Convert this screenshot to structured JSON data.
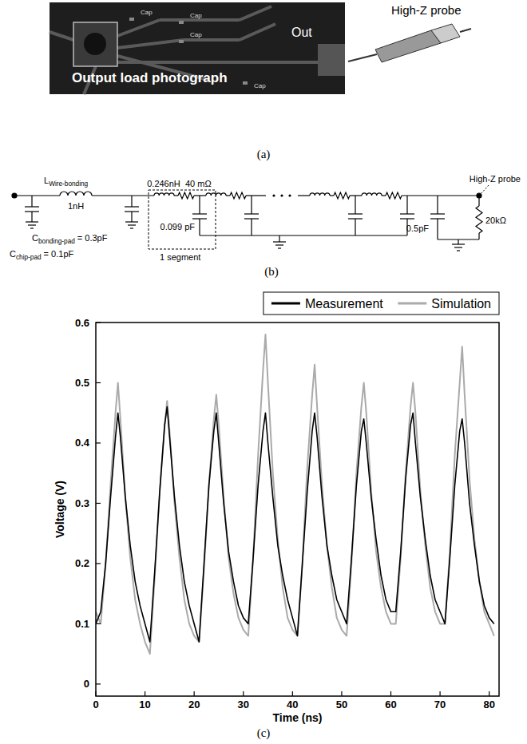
{
  "photo": {
    "caption": "(a)",
    "title": "Output load photograph",
    "out_label": "Out",
    "cap_labels": [
      "Cap",
      "Cap",
      "Cap",
      "Cap"
    ],
    "probe_label": "High-Z probe"
  },
  "circuit": {
    "caption": "(b)",
    "l_wire": {
      "symbol": "L",
      "subscript": "Wire-bonding",
      "value": "1nH"
    },
    "c_bonding": {
      "symbol": "C",
      "subscript": "bonding-pad",
      "value": "= 0.3pF"
    },
    "c_chip": {
      "symbol": "C",
      "subscript": "chip-pad",
      "value": "= 0.1pF"
    },
    "segment": {
      "inductance": "0.246nH",
      "resistance": "40 mΩ",
      "capacitance": "0.099 pF",
      "label": "1 segment"
    },
    "load": {
      "capacitance": "0.5pF",
      "resistance": "20kΩ"
    },
    "probe_label": "High-Z probe"
  },
  "chart_data": {
    "type": "line",
    "caption": "(c)",
    "x_label": "Time (ns)",
    "y_label": "Voltage (V)",
    "x": [
      0,
      1,
      2,
      3,
      4,
      4.5,
      5,
      6,
      7,
      8,
      9,
      10,
      11,
      12,
      13,
      14,
      14.5,
      15,
      16,
      17,
      18,
      19,
      20,
      21,
      22,
      23,
      24,
      24.5,
      25,
      26,
      27,
      28,
      29,
      30,
      31,
      32,
      33,
      34,
      34.5,
      35,
      36,
      37,
      38,
      39,
      40,
      41,
      42,
      43,
      44,
      44.5,
      45,
      46,
      47,
      48,
      49,
      50,
      51,
      52,
      53,
      54,
      54.5,
      55,
      56,
      57,
      58,
      59,
      60,
      61,
      62,
      63,
      64,
      64.5,
      65,
      66,
      67,
      68,
      69,
      70,
      71,
      72,
      73,
      74,
      74.5,
      75,
      76,
      77,
      78,
      79,
      80,
      81
    ],
    "series": [
      {
        "name": "Measurement",
        "color": "#000000",
        "values": [
          0.1,
          0.12,
          0.2,
          0.31,
          0.41,
          0.45,
          0.41,
          0.31,
          0.23,
          0.17,
          0.13,
          0.1,
          0.07,
          0.19,
          0.32,
          0.43,
          0.46,
          0.41,
          0.31,
          0.23,
          0.17,
          0.13,
          0.1,
          0.07,
          0.2,
          0.33,
          0.42,
          0.45,
          0.4,
          0.3,
          0.22,
          0.17,
          0.13,
          0.11,
          0.1,
          0.21,
          0.33,
          0.42,
          0.45,
          0.4,
          0.31,
          0.23,
          0.18,
          0.14,
          0.11,
          0.08,
          0.2,
          0.32,
          0.42,
          0.45,
          0.41,
          0.31,
          0.23,
          0.18,
          0.14,
          0.12,
          0.1,
          0.21,
          0.33,
          0.42,
          0.44,
          0.4,
          0.31,
          0.24,
          0.18,
          0.14,
          0.12,
          0.12,
          0.22,
          0.34,
          0.43,
          0.45,
          0.4,
          0.31,
          0.24,
          0.18,
          0.14,
          0.12,
          0.1,
          0.21,
          0.33,
          0.42,
          0.44,
          0.4,
          0.3,
          0.23,
          0.17,
          0.13,
          0.11,
          0.1
        ]
      },
      {
        "name": "Simulation",
        "color": "#aaaaaa",
        "values": [
          0.12,
          0.1,
          0.2,
          0.33,
          0.45,
          0.5,
          0.44,
          0.31,
          0.21,
          0.14,
          0.1,
          0.07,
          0.05,
          0.18,
          0.32,
          0.43,
          0.47,
          0.42,
          0.3,
          0.21,
          0.14,
          0.1,
          0.08,
          0.07,
          0.19,
          0.33,
          0.44,
          0.48,
          0.43,
          0.31,
          0.21,
          0.15,
          0.11,
          0.09,
          0.08,
          0.21,
          0.38,
          0.52,
          0.58,
          0.5,
          0.35,
          0.24,
          0.16,
          0.11,
          0.09,
          0.08,
          0.2,
          0.36,
          0.48,
          0.53,
          0.46,
          0.33,
          0.23,
          0.16,
          0.11,
          0.09,
          0.08,
          0.2,
          0.35,
          0.46,
          0.5,
          0.45,
          0.32,
          0.22,
          0.16,
          0.12,
          0.1,
          0.1,
          0.21,
          0.35,
          0.46,
          0.5,
          0.45,
          0.32,
          0.23,
          0.16,
          0.12,
          0.1,
          0.1,
          0.22,
          0.38,
          0.5,
          0.56,
          0.48,
          0.34,
          0.24,
          0.17,
          0.12,
          0.1,
          0.08
        ]
      }
    ],
    "xlim": [
      0,
      82
    ],
    "ylim": [
      -0.02,
      0.6
    ],
    "xticks": [
      0,
      10,
      20,
      30,
      40,
      50,
      60,
      70,
      80
    ],
    "yticks": [
      0,
      0.1,
      0.2,
      0.3,
      0.4,
      0.5,
      0.6
    ],
    "legend": "top"
  }
}
